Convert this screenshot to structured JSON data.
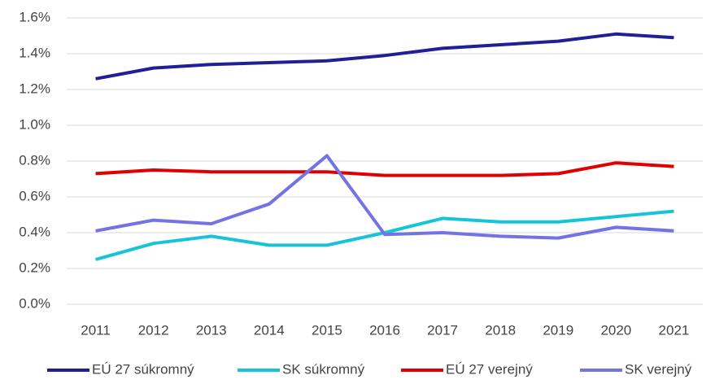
{
  "chart_data": {
    "type": "line",
    "categories": [
      "2011",
      "2012",
      "2013",
      "2014",
      "2015",
      "2016",
      "2017",
      "2018",
      "2019",
      "2020",
      "2021"
    ],
    "series": [
      {
        "name": "EÚ 27 súkromný",
        "color": "#1f1f96",
        "values": [
          1.26,
          1.32,
          1.34,
          1.35,
          1.36,
          1.39,
          1.43,
          1.45,
          1.47,
          1.51,
          1.49
        ]
      },
      {
        "name": "SK súkromný",
        "color": "#16c4d8",
        "values": [
          0.25,
          0.34,
          0.38,
          0.33,
          0.33,
          0.4,
          0.48,
          0.46,
          0.46,
          0.49,
          0.52
        ]
      },
      {
        "name": "EÚ 27 verejný",
        "color": "#e00000",
        "values": [
          0.73,
          0.75,
          0.74,
          0.74,
          0.74,
          0.72,
          0.72,
          0.72,
          0.73,
          0.79,
          0.77
        ]
      },
      {
        "name": "SK verejný",
        "color": "#7373e3",
        "values": [
          0.41,
          0.47,
          0.45,
          0.56,
          0.83,
          0.39,
          0.4,
          0.38,
          0.37,
          0.43,
          0.41
        ]
      }
    ],
    "ylim": [
      0,
      1.6
    ],
    "yticks": [
      {
        "value": 0,
        "label": "0.0%"
      },
      {
        "value": 0.2,
        "label": "0.2%"
      },
      {
        "value": 0.4,
        "label": "0.4%"
      },
      {
        "value": 0.6,
        "label": "0.6%"
      },
      {
        "value": 0.8,
        "label": "0.8%"
      },
      {
        "value": 1.0,
        "label": "1.0%"
      },
      {
        "value": 1.2,
        "label": "1.2%"
      },
      {
        "value": 1.4,
        "label": "1.4%"
      },
      {
        "value": 1.6,
        "label": "1.6%"
      }
    ],
    "grid": true,
    "legend": "bottom"
  }
}
